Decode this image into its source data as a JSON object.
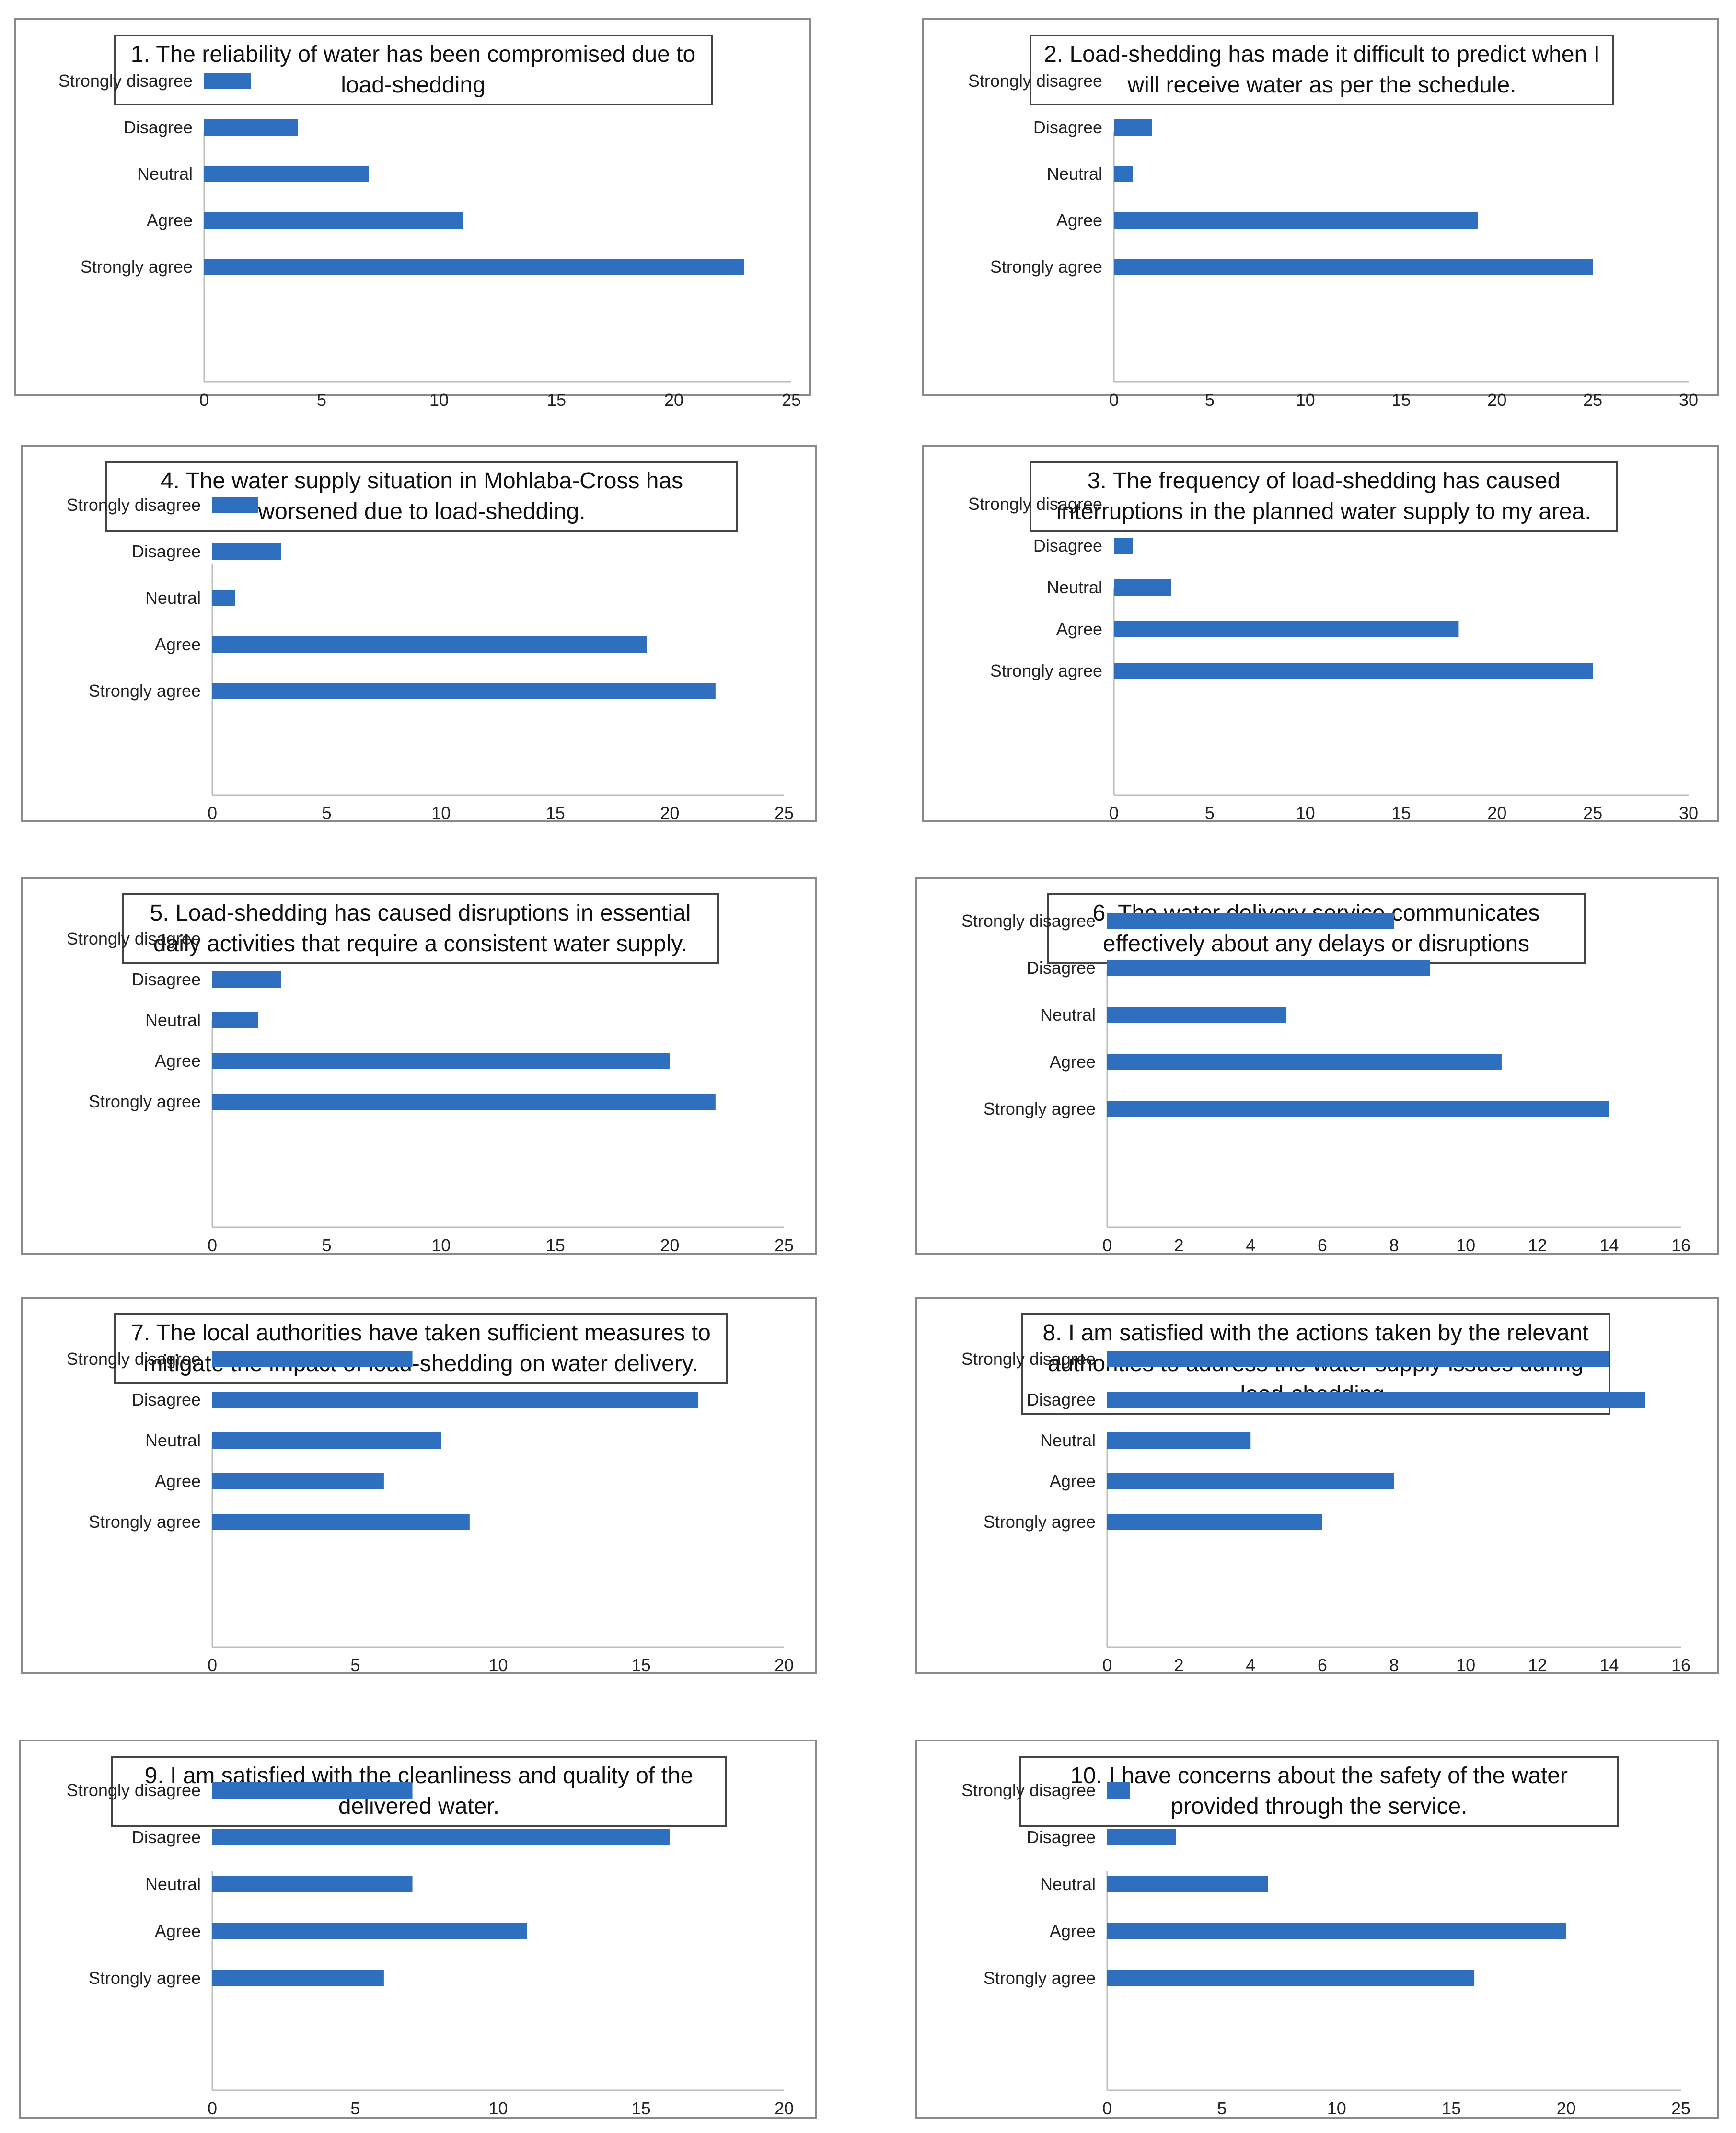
{
  "colors": {
    "bar": "#2e6fc0",
    "axis": "#bdbdbd",
    "text": "#222222",
    "frame": "#8a8a8a"
  },
  "chart_data": [
    {
      "type": "bar",
      "orientation": "horizontal",
      "title": "1. The reliability of water has been compromised due to load-shedding",
      "categories": [
        "Strongly disagree",
        "Disagree",
        "Neutral",
        "Agree",
        "Strongly agree"
      ],
      "values": [
        2,
        4,
        7,
        11,
        23
      ],
      "xlim": [
        0,
        25
      ],
      "ticks": [
        0,
        5,
        10,
        15,
        20,
        25
      ]
    },
    {
      "type": "bar",
      "orientation": "horizontal",
      "title": "2. Load-shedding has made it difficult to predict when I will receive water as per the schedule.",
      "categories": [
        "Strongly disagree",
        "Disagree",
        "Neutral",
        "Agree",
        "Strongly agree"
      ],
      "values": [
        0,
        2,
        1,
        19,
        25
      ],
      "xlim": [
        0,
        30
      ],
      "ticks": [
        0,
        5,
        10,
        15,
        20,
        25,
        30
      ]
    },
    {
      "type": "bar",
      "orientation": "horizontal",
      "title": "4. The water supply situation in Mohlaba-Cross has worsened due to load-shedding.",
      "categories": [
        "Strongly disagree",
        "Disagree",
        "Neutral",
        "Agree",
        "Strongly agree"
      ],
      "values": [
        2,
        3,
        1,
        19,
        22
      ],
      "xlim": [
        0,
        25
      ],
      "ticks": [
        0,
        5,
        10,
        15,
        20,
        25
      ]
    },
    {
      "type": "bar",
      "orientation": "horizontal",
      "title": "3. The frequency of load-shedding has caused interruptions in the planned water supply to my area.",
      "categories": [
        "Strongly disagree",
        "Disagree",
        "Neutral",
        "Agree",
        "Strongly agree"
      ],
      "values": [
        0,
        1,
        3,
        18,
        25
      ],
      "xlim": [
        0,
        30
      ],
      "ticks": [
        0,
        5,
        10,
        15,
        20,
        25,
        30
      ]
    },
    {
      "type": "bar",
      "orientation": "horizontal",
      "title": "5. Load-shedding has caused disruptions in essential daily activities that require a consistent water supply.",
      "categories": [
        "Strongly disagree",
        "Disagree",
        "Neutral",
        "Agree",
        "Strongly agree"
      ],
      "values": [
        0,
        3,
        2,
        20,
        22
      ],
      "xlim": [
        0,
        25
      ],
      "ticks": [
        0,
        5,
        10,
        15,
        20,
        25
      ]
    },
    {
      "type": "bar",
      "orientation": "horizontal",
      "title": "6. The water delivery service communicates effectively about any delays or disruptions",
      "categories": [
        "Strongly disagree",
        "Disagree",
        "Neutral",
        "Agree",
        "Strongly agree"
      ],
      "values": [
        8,
        9,
        5,
        11,
        14
      ],
      "xlim": [
        0,
        16
      ],
      "ticks": [
        0,
        2,
        4,
        6,
        8,
        10,
        12,
        14,
        16
      ]
    },
    {
      "type": "bar",
      "orientation": "horizontal",
      "title": "7. The local authorities have taken sufficient measures to mitigate the impact of load-shedding on water delivery.",
      "categories": [
        "Strongly disagree",
        "Disagree",
        "Neutral",
        "Agree",
        "Strongly agree"
      ],
      "values": [
        7,
        17,
        8,
        6,
        9
      ],
      "xlim": [
        0,
        20
      ],
      "ticks": [
        0,
        5,
        10,
        15,
        20
      ]
    },
    {
      "type": "bar",
      "orientation": "horizontal",
      "title": "8. I am satisfied with the actions taken by the relevant authorities to address the water supply issues during load-shedding.",
      "categories": [
        "Strongly disagree",
        "Disagree",
        "Neutral",
        "Agree",
        "Strongly agree"
      ],
      "values": [
        14,
        15,
        4,
        8,
        6
      ],
      "xlim": [
        0,
        16
      ],
      "ticks": [
        0,
        2,
        4,
        6,
        8,
        10,
        12,
        14,
        16
      ]
    },
    {
      "type": "bar",
      "orientation": "horizontal",
      "title": "9. I am satisfied with the cleanliness and quality of the delivered water.",
      "categories": [
        "Strongly disagree",
        "Disagree",
        "Neutral",
        "Agree",
        "Strongly agree"
      ],
      "values": [
        7,
        16,
        7,
        11,
        6
      ],
      "xlim": [
        0,
        20
      ],
      "ticks": [
        0,
        5,
        10,
        15,
        20
      ]
    },
    {
      "type": "bar",
      "orientation": "horizontal",
      "title": "10. I have concerns about the safety of the water provided through the service.",
      "categories": [
        "Strongly disagree",
        "Disagree",
        "Neutral",
        "Agree",
        "Strongly agree"
      ],
      "values": [
        1,
        3,
        7,
        20,
        16
      ],
      "xlim": [
        0,
        25
      ],
      "ticks": [
        0,
        5,
        10,
        15,
        20,
        25
      ]
    }
  ]
}
